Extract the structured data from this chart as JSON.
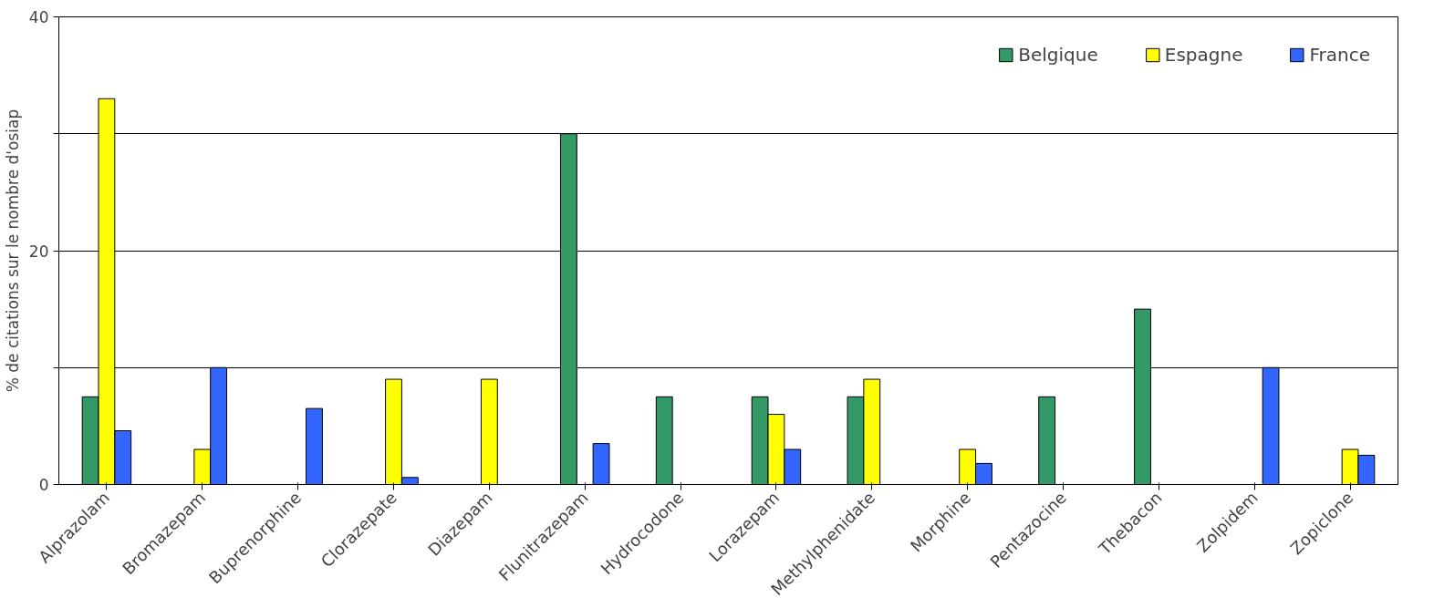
{
  "chart_data": {
    "type": "bar",
    "ylabel": "% de citations sur le nombre d'osiap",
    "categories": [
      "Alprazolam",
      "Bromazepam",
      "Buprenorphine",
      "Clorazepate",
      "Diazepam",
      "Flunitrazepam",
      "Hydrocodone",
      "Lorazepam",
      "Methylphenidate",
      "Morphine",
      "Pentazocine",
      "Thebacon",
      "Zolpidem",
      "Zopiclone"
    ],
    "series": [
      {
        "name": "Belgique",
        "color": "#339966",
        "values": [
          7.5,
          null,
          null,
          null,
          null,
          30,
          7.5,
          7.5,
          7.5,
          null,
          7.5,
          15,
          null,
          null
        ]
      },
      {
        "name": "Espagne",
        "color": "#ffff00",
        "values": [
          33,
          3,
          null,
          9,
          9,
          null,
          null,
          6,
          9,
          3,
          null,
          null,
          null,
          3
        ]
      },
      {
        "name": "France",
        "color": "#3366ff",
        "values": [
          4.6,
          10,
          6.5,
          0.6,
          null,
          3.5,
          null,
          3,
          null,
          1.8,
          null,
          null,
          10,
          2.5
        ]
      }
    ],
    "ylim": [
      0,
      40
    ],
    "yticks": [
      0,
      {
        "value": 10,
        "label": null
      },
      20,
      {
        "value": 30,
        "label": null
      },
      40
    ],
    "grid": "y",
    "legend": "top right"
  }
}
